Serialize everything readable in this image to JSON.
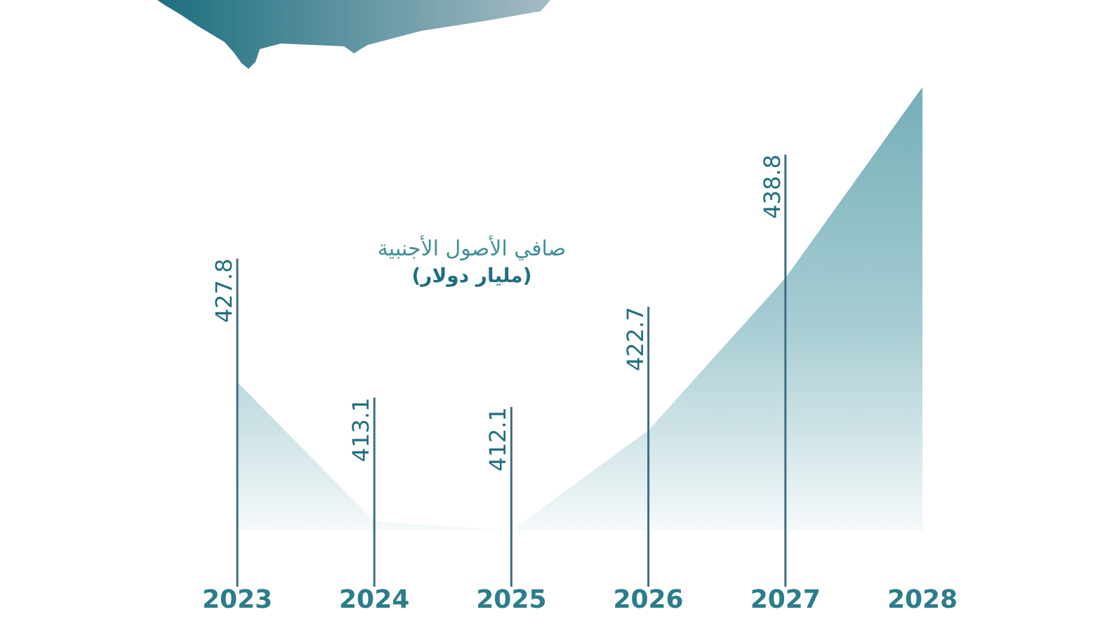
{
  "chart_data": {
    "type": "area",
    "title": "صافي الأصول الأجنبية",
    "subtitle": "(مليار دولار)",
    "categories": [
      "2023",
      "2024",
      "2025",
      "2026",
      "2027",
      "2028"
    ],
    "values": [
      427.8,
      413.1,
      412.1,
      422.7,
      438.8,
      459
    ],
    "value_labels": [
      "427.8",
      "413.1",
      "412.1",
      "422.7",
      "438.8",
      null
    ],
    "color": "#17798a",
    "tick_labels": "x"
  }
}
